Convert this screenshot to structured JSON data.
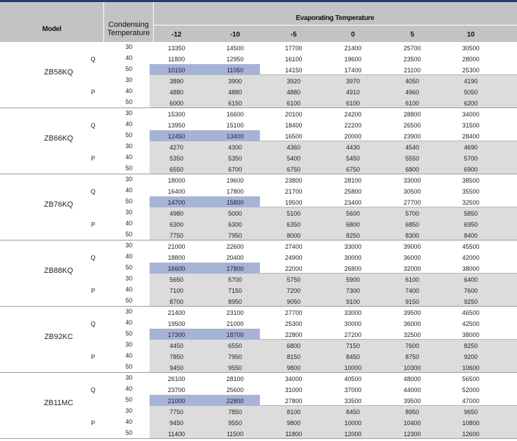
{
  "header": {
    "model_label": "Model",
    "condensing_line1": "Condensing",
    "condensing_line2": "Temperature",
    "evaporating_label": "Evaporating Temperature",
    "columns": [
      "-12",
      "-10",
      "-5",
      "0",
      "5",
      "10"
    ]
  },
  "highlight_color": "#a6b3d8",
  "band_color": "#dcdcdc",
  "models": [
    {
      "name": "ZB58KQ",
      "groups": [
        {
          "label": "Q",
          "rows": [
            {
              "cond": "30",
              "values": [
                "13350",
                "14500",
                "17700",
                "21400",
                "25700",
                "30500"
              ]
            },
            {
              "cond": "40",
              "values": [
                "11800",
                "12950",
                "16100",
                "19600",
                "23500",
                "28000"
              ]
            },
            {
              "cond": "50",
              "values": [
                "10150",
                "11050",
                "14150",
                "17400",
                "21100",
                "25300"
              ]
            }
          ]
        },
        {
          "label": "P",
          "rows": [
            {
              "cond": "30",
              "values": [
                "3890",
                "3900",
                "3920",
                "3970",
                "4050",
                "4190"
              ]
            },
            {
              "cond": "40",
              "values": [
                "4880",
                "4880",
                "4880",
                "4910",
                "4960",
                "5050"
              ]
            },
            {
              "cond": "50",
              "values": [
                "6000",
                "6150",
                "6100",
                "6100",
                "6100",
                "6200"
              ]
            }
          ]
        }
      ]
    },
    {
      "name": "ZB66KQ",
      "groups": [
        {
          "label": "Q",
          "rows": [
            {
              "cond": "30",
              "values": [
                "15300",
                "16600",
                "20100",
                "24200",
                "28800",
                "34000"
              ]
            },
            {
              "cond": "40",
              "values": [
                "13950",
                "15100",
                "18400",
                "22200",
                "26500",
                "31500"
              ]
            },
            {
              "cond": "50",
              "values": [
                "12450",
                "13400",
                "16500",
                "20000",
                "23900",
                "28400"
              ]
            }
          ]
        },
        {
          "label": "P",
          "rows": [
            {
              "cond": "30",
              "values": [
                "4270",
                "4300",
                "4360",
                "4430",
                "4540",
                "4690"
              ]
            },
            {
              "cond": "40",
              "values": [
                "5350",
                "5350",
                "5400",
                "5450",
                "5550",
                "5700"
              ]
            },
            {
              "cond": "50",
              "values": [
                "6550",
                "6700",
                "6750",
                "6750",
                "6800",
                "6900"
              ]
            }
          ]
        }
      ]
    },
    {
      "name": "ZB76KQ",
      "groups": [
        {
          "label": "Q",
          "rows": [
            {
              "cond": "30",
              "values": [
                "18000",
                "19600",
                "23800",
                "28100",
                "33000",
                "38500"
              ]
            },
            {
              "cond": "40",
              "values": [
                "16400",
                "17800",
                "21700",
                "25800",
                "30500",
                "35500"
              ]
            },
            {
              "cond": "50",
              "values": [
                "14700",
                "15800",
                "19500",
                "23400",
                "27700",
                "32500"
              ]
            }
          ]
        },
        {
          "label": "P",
          "rows": [
            {
              "cond": "30",
              "values": [
                "4980",
                "5000",
                "5100",
                "5600",
                "5700",
                "5850"
              ]
            },
            {
              "cond": "40",
              "values": [
                "6300",
                "6300",
                "6350",
                "6800",
                "6850",
                "6950"
              ]
            },
            {
              "cond": "50",
              "values": [
                "7750",
                "7950",
                "8000",
                "8250",
                "8300",
                "8400"
              ]
            }
          ]
        }
      ]
    },
    {
      "name": "ZB88KQ",
      "groups": [
        {
          "label": "Q",
          "rows": [
            {
              "cond": "30",
              "values": [
                "21000",
                "22600",
                "27400",
                "33000",
                "39000",
                "45500"
              ]
            },
            {
              "cond": "40",
              "values": [
                "18800",
                "20400",
                "24900",
                "30000",
                "36000",
                "42000"
              ]
            },
            {
              "cond": "50",
              "values": [
                "16600",
                "17800",
                "22000",
                "26800",
                "32000",
                "38000"
              ]
            }
          ]
        },
        {
          "label": "P",
          "rows": [
            {
              "cond": "30",
              "values": [
                "5650",
                "5700",
                "5750",
                "5900",
                "6100",
                "6400"
              ]
            },
            {
              "cond": "40",
              "values": [
                "7100",
                "7150",
                "7200",
                "7300",
                "7400",
                "7600"
              ]
            },
            {
              "cond": "50",
              "values": [
                "8700",
                "8950",
                "9050",
                "9100",
                "9150",
                "9250"
              ]
            }
          ]
        }
      ]
    },
    {
      "name": "ZB92KC",
      "groups": [
        {
          "label": "Q",
          "rows": [
            {
              "cond": "30",
              "values": [
                "21400",
                "23100",
                "27700",
                "33000",
                "39500",
                "46500"
              ]
            },
            {
              "cond": "40",
              "values": [
                "19500",
                "21000",
                "25300",
                "30000",
                "36000",
                "42500"
              ]
            },
            {
              "cond": "50",
              "values": [
                "17300",
                "18700",
                "22800",
                "27200",
                "32500",
                "38000"
              ]
            }
          ]
        },
        {
          "label": "P",
          "rows": [
            {
              "cond": "30",
              "values": [
                "4450",
                "6550",
                "6800",
                "7150",
                "7600",
                "8250"
              ]
            },
            {
              "cond": "40",
              "values": [
                "7850",
                "7950",
                "8150",
                "8450",
                "8750",
                "9200"
              ]
            },
            {
              "cond": "50",
              "values": [
                "9450",
                "9550",
                "9800",
                "10000",
                "10300",
                "10600"
              ]
            }
          ]
        }
      ]
    },
    {
      "name": "ZB11MC",
      "groups": [
        {
          "label": "Q",
          "rows": [
            {
              "cond": "30",
              "values": [
                "26100",
                "28100",
                "34000",
                "40500",
                "48000",
                "56500"
              ]
            },
            {
              "cond": "40",
              "values": [
                "23700",
                "25600",
                "31000",
                "37000",
                "44000",
                "52000"
              ]
            },
            {
              "cond": "50",
              "values": [
                "21000",
                "22800",
                "27800",
                "33500",
                "39500",
                "47000"
              ]
            }
          ]
        },
        {
          "label": "P",
          "rows": [
            {
              "cond": "30",
              "values": [
                "7750",
                "7850",
                "8100",
                "8450",
                "8950",
                "9650"
              ]
            },
            {
              "cond": "40",
              "values": [
                "9450",
                "9550",
                "9800",
                "10000",
                "10400",
                "10800"
              ]
            },
            {
              "cond": "50",
              "values": [
                "11400",
                "11500",
                "11800",
                "12000",
                "12300",
                "12600"
              ]
            }
          ]
        }
      ]
    }
  ]
}
